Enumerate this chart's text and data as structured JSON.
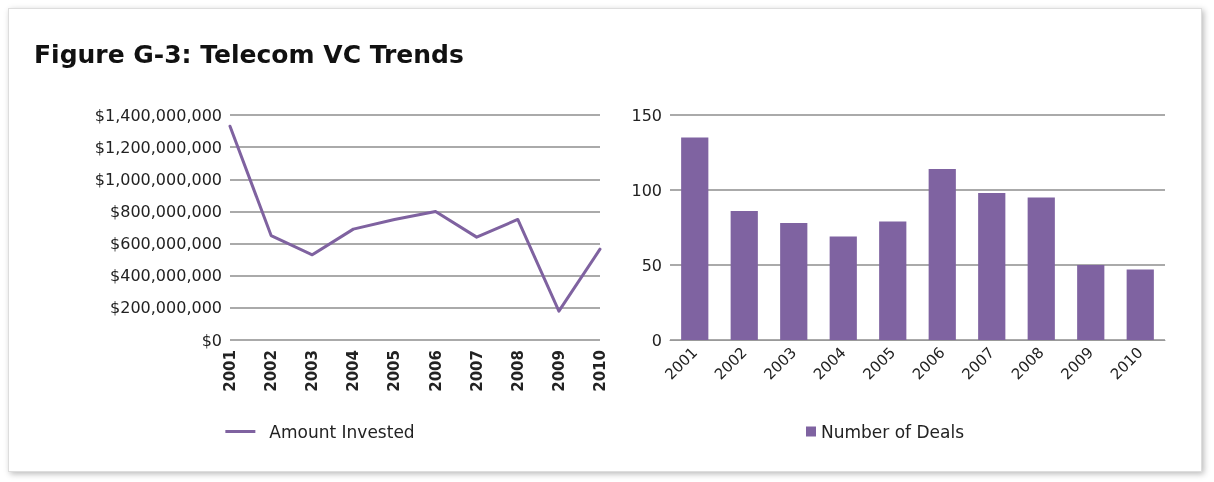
{
  "chart_data": [
    {
      "type": "line",
      "title": "Figure G-3: Telecom VC Trends",
      "categories": [
        "2001",
        "2002",
        "2003",
        "2004",
        "2005",
        "2006",
        "2007",
        "2008",
        "2009",
        "2010"
      ],
      "series": [
        {
          "name": "Amount Invested",
          "color": "#7f62a0",
          "values": [
            1330000000,
            650000000,
            530000000,
            690000000,
            750000000,
            800000000,
            640000000,
            750000000,
            180000000,
            565000000
          ]
        }
      ],
      "ylim": [
        0,
        1400000000
      ],
      "yticks": [
        {
          "value": 0,
          "label": "$0"
        },
        {
          "value": 200000000,
          "label": "$200,000,000"
        },
        {
          "value": 400000000,
          "label": "$400,000,000"
        },
        {
          "value": 600000000,
          "label": "$600,000,000"
        },
        {
          "value": 800000000,
          "label": "$800,000,000"
        },
        {
          "value": 1000000000,
          "label": "$1,000,000,000"
        },
        {
          "value": 1200000000,
          "label": "$1,200,000,000"
        },
        {
          "value": 1400000000,
          "label": "$1,400,000,000"
        }
      ],
      "grid": "y",
      "legend": "bottom",
      "marker": "none"
    },
    {
      "type": "bar",
      "categories": [
        "2001",
        "2002",
        "2003",
        "2004",
        "2005",
        "2006",
        "2007",
        "2008",
        "2009",
        "2010"
      ],
      "series": [
        {
          "name": "Number of Deals",
          "color": "#7f63a1",
          "values": [
            135,
            86,
            78,
            69,
            79,
            114,
            98,
            95,
            50,
            47
          ]
        }
      ],
      "ylim": [
        0,
        150
      ],
      "yticks": [
        0,
        50,
        100,
        150
      ],
      "grid": "y",
      "legend": "bottom"
    }
  ]
}
